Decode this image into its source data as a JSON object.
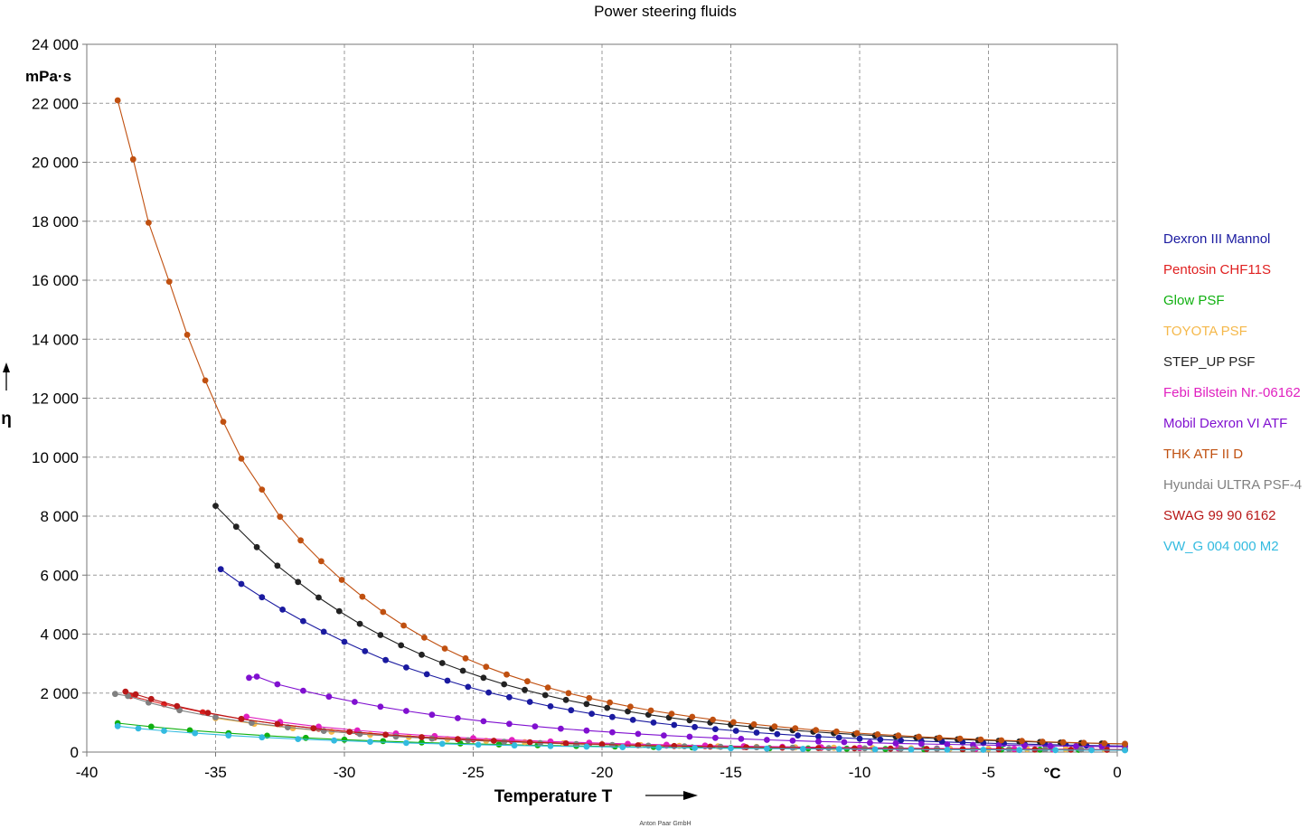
{
  "chart_data": {
    "type": "line",
    "title": "Power steering fluids",
    "xlabel": "Temperature T",
    "x_unit": "°C",
    "ylabel": "η",
    "y_unit": "mPa·s",
    "xlim": [
      -40,
      0
    ],
    "ylim": [
      0,
      24000
    ],
    "x_ticks": [
      "-40",
      "-35",
      "-30",
      "-25",
      "-20",
      "-15",
      "-10",
      "-5",
      "0"
    ],
    "y_ticks": [
      "0",
      "2 000",
      "4 000",
      "6 000",
      "8 000",
      "10 000",
      "12 000",
      "14 000",
      "16 000",
      "18 000",
      "20 000",
      "22 000",
      "24 000"
    ],
    "grid": true,
    "legend_position": "right",
    "footer": "Anton Paar GmbH",
    "series": [
      {
        "name": "Dexron III Mannol",
        "color": "#1a1aa0",
        "x": [
          -34.8,
          -34,
          -33.2,
          -32.4,
          -31.6,
          -30.8,
          -30,
          -29.2,
          -28.4,
          -27.6,
          -26.8,
          -26,
          -25.2,
          -24.4,
          -23.6,
          -22.8,
          -22,
          -21.2,
          -20.4,
          -19.6,
          -18.8,
          -18,
          -17.2,
          -16.4,
          -15.6,
          -14.8,
          -14,
          -13.2,
          -12.4,
          -11.6,
          -10.8,
          -10,
          -9.2,
          -8.4,
          -7.6,
          -6.8,
          -6,
          -5.2,
          -4.4,
          -3.6,
          -2.8,
          -2,
          -1.2,
          -0.4,
          0.3
        ],
        "y": [
          6200,
          5700,
          5250,
          4830,
          4440,
          4080,
          3740,
          3420,
          3120,
          2870,
          2640,
          2420,
          2210,
          2020,
          1860,
          1700,
          1550,
          1420,
          1300,
          1190,
          1090,
          1000,
          920,
          850,
          780,
          720,
          660,
          610,
          565,
          525,
          490,
          455,
          425,
          395,
          370,
          345,
          325,
          305,
          285,
          270,
          255,
          240,
          225,
          215,
          205
        ]
      },
      {
        "name": "Pentosin CHF11S",
        "color": "#e02020",
        "x": [
          -38.3,
          -37,
          -35.5,
          -34,
          -32.5,
          -31,
          -29.5,
          -28,
          -26.5,
          -25,
          -23.5,
          -22,
          -20.5,
          -19,
          -17.5,
          -16,
          -14.5,
          -13,
          -11.5,
          -10,
          -8.5,
          -7,
          -5.5,
          -4,
          -2.5,
          -1,
          0.3
        ],
        "y": [
          1900,
          1620,
          1350,
          1120,
          940,
          790,
          670,
          570,
          490,
          425,
          370,
          322,
          282,
          248,
          220,
          196,
          176,
          159,
          145,
          133,
          122,
          113,
          105,
          98,
          92,
          87,
          83
        ]
      },
      {
        "name": "Glow PSF",
        "color": "#10b010",
        "x": [
          -38.8,
          -37.5,
          -36,
          -34.5,
          -33,
          -31.5,
          -30,
          -28.5,
          -27,
          -25.5,
          -24,
          -22.5,
          -21,
          -19.5,
          -18,
          -16.5,
          -15,
          -13.5,
          -12,
          -10.5,
          -9,
          -7.5,
          -6,
          -4.5,
          -3,
          -1.5,
          0.3
        ],
        "y": [
          980,
          860,
          740,
          640,
          555,
          480,
          420,
          370,
          326,
          290,
          258,
          231,
          208,
          188,
          171,
          156,
          143,
          132,
          122,
          113,
          105,
          98,
          92,
          86,
          81,
          77,
          73
        ]
      },
      {
        "name": "TOYOTA PSF",
        "color": "#f5b84a",
        "x": [
          -35,
          -33.5,
          -32,
          -30.5,
          -29,
          -27.5,
          -26,
          -24.5,
          -23,
          -21.5,
          -20,
          -18.5,
          -17,
          -15.5,
          -14,
          -12.5,
          -11,
          -9.5,
          -8,
          -6.5,
          -5,
          -3.5,
          -2,
          -0.5,
          0.3
        ],
        "y": [
          1150,
          960,
          810,
          690,
          590,
          508,
          440,
          384,
          337,
          297,
          264,
          236,
          212,
          192,
          175,
          160,
          147,
          136,
          126,
          117,
          109,
          102,
          96,
          91,
          89
        ]
      },
      {
        "name": "STEP_UP PSF",
        "color": "#222222",
        "x": [
          -35,
          -34.2,
          -33.4,
          -32.6,
          -31.8,
          -31,
          -30.2,
          -29.4,
          -28.6,
          -27.8,
          -27,
          -26.2,
          -25.4,
          -24.6,
          -23.8,
          -23,
          -22.2,
          -21.4,
          -20.6,
          -19.8,
          -19,
          -18.2,
          -17.4,
          -16.6,
          -15.8,
          -15,
          -14.2,
          -13.4,
          -12.6,
          -11.8,
          -11,
          -10.2,
          -9.4,
          -8.6,
          -7.8,
          -7,
          -6.2,
          -5.4,
          -4.6,
          -3.8,
          -3,
          -2.2,
          -1.4,
          -0.6,
          0.3
        ],
        "y": [
          8350,
          7640,
          6950,
          6320,
          5770,
          5240,
          4780,
          4350,
          3970,
          3620,
          3300,
          3020,
          2760,
          2520,
          2300,
          2110,
          1930,
          1770,
          1630,
          1500,
          1380,
          1270,
          1170,
          1080,
          1000,
          925,
          855,
          795,
          740,
          690,
          640,
          600,
          560,
          525,
          490,
          460,
          432,
          406,
          382,
          360,
          340,
          322,
          305,
          290,
          275
        ]
      },
      {
        "name": "Febi Bilstein Nr.-06162",
        "color": "#e020c0",
        "x": [
          -33.8,
          -32.5,
          -31,
          -29.5,
          -28,
          -26.5,
          -25,
          -23.5,
          -22,
          -20.5,
          -19,
          -17.5,
          -16,
          -14.5,
          -13,
          -11.5,
          -10,
          -8.5,
          -7,
          -5.5,
          -4,
          -2.5,
          -1,
          0.3
        ],
        "y": [
          1200,
          1020,
          860,
          735,
          630,
          543,
          470,
          410,
          360,
          317,
          280,
          249,
          222,
          199,
          180,
          163,
          148,
          135,
          124,
          114,
          106,
          98,
          92,
          87
        ]
      },
      {
        "name": "Mobil Dexron VI  ATF",
        "color": "#8010d0",
        "x": [
          -33.7,
          -33.4,
          -32.6,
          -31.6,
          -30.6,
          -29.6,
          -28.6,
          -27.6,
          -26.6,
          -25.6,
          -24.6,
          -23.6,
          -22.6,
          -21.6,
          -20.6,
          -19.6,
          -18.6,
          -17.6,
          -16.6,
          -15.6,
          -14.6,
          -13.6,
          -12.6,
          -11.6,
          -10.6,
          -9.6,
          -8.6,
          -7.6,
          -6.6,
          -5.6,
          -4.6,
          -3.6,
          -2.6,
          -1.6,
          -0.6,
          0.3
        ],
        "y": [
          2520,
          2560,
          2300,
          2080,
          1880,
          1700,
          1540,
          1395,
          1265,
          1150,
          1045,
          955,
          870,
          795,
          730,
          670,
          615,
          565,
          522,
          482,
          447,
          415,
          386,
          360,
          336,
          315,
          295,
          277,
          261,
          246,
          232,
          220,
          208,
          198,
          188,
          180
        ]
      },
      {
        "name": "THK ATF II D",
        "color": "#c05010",
        "x": [
          -38.8,
          -38.2,
          -37.6,
          -36.8,
          -36.1,
          -35.4,
          -34.7,
          -34,
          -33.2,
          -32.5,
          -31.7,
          -30.9,
          -30.1,
          -29.3,
          -28.5,
          -27.7,
          -26.9,
          -26.1,
          -25.3,
          -24.5,
          -23.7,
          -22.9,
          -22.1,
          -21.3,
          -20.5,
          -19.7,
          -18.9,
          -18.1,
          -17.3,
          -16.5,
          -15.7,
          -14.9,
          -14.1,
          -13.3,
          -12.5,
          -11.7,
          -10.9,
          -10.1,
          -9.3,
          -8.5,
          -7.7,
          -6.9,
          -6.1,
          -5.3,
          -4.5,
          -3.7,
          -2.9,
          -2.1,
          -1.3,
          -0.5,
          0.3
        ],
        "y": [
          22100,
          20100,
          17950,
          15950,
          14150,
          12600,
          11200,
          9950,
          8900,
          7980,
          7180,
          6470,
          5840,
          5270,
          4750,
          4290,
          3880,
          3510,
          3180,
          2890,
          2630,
          2400,
          2190,
          2000,
          1830,
          1680,
          1540,
          1410,
          1300,
          1195,
          1100,
          1015,
          940,
          870,
          805,
          745,
          695,
          645,
          600,
          560,
          522,
          488,
          456,
          427,
          400,
          376,
          353,
          332,
          313,
          295,
          280
        ]
      },
      {
        "name": "Hyundai ULTRA PSF-4",
        "color": "#808080",
        "x": [
          -38.9,
          -38.4,
          -37.6,
          -36.4,
          -35,
          -33.6,
          -32.2,
          -30.8,
          -29.4,
          -28,
          -26.6,
          -25.2,
          -23.8,
          -22.4,
          -21,
          -19.6,
          -18.2,
          -16.8,
          -15.4,
          -14,
          -12.6,
          -11.2,
          -9.8,
          -8.4,
          -7,
          -5.6,
          -4.2,
          -2.8,
          -1.4,
          0.3
        ],
        "y": [
          1970,
          1900,
          1680,
          1420,
          1180,
          990,
          840,
          716,
          613,
          527,
          456,
          397,
          348,
          307,
          272,
          242,
          217,
          195,
          177,
          161,
          147,
          135,
          125,
          116,
          108,
          101,
          95,
          89,
          84,
          79
        ]
      },
      {
        "name": "SWAG 99 90 6162",
        "color": "#b81818",
        "x": [
          -38.5,
          -38.1,
          -37.5,
          -36.5,
          -35.3,
          -34,
          -32.6,
          -31.2,
          -29.8,
          -28.4,
          -27,
          -25.6,
          -24.2,
          -22.8,
          -21.4,
          -20,
          -18.6,
          -17.2,
          -15.8,
          -14.4,
          -13,
          -11.6,
          -10.2,
          -8.8,
          -7.4,
          -6,
          -4.6,
          -3.2,
          -1.8,
          -0.4,
          0.3
        ],
        "y": [
          2050,
          1960,
          1800,
          1560,
          1330,
          1125,
          950,
          806,
          687,
          589,
          507,
          439,
          382,
          334,
          294,
          260,
          231,
          206,
          185,
          167,
          151,
          138,
          126,
          116,
          107,
          99,
          92,
          86,
          81,
          76,
          74
        ]
      },
      {
        "name": "VW_G 004 000 M2",
        "color": "#33bbe0",
        "x": [
          -38.8,
          -38,
          -37,
          -35.8,
          -34.5,
          -33.2,
          -31.8,
          -30.4,
          -29,
          -27.6,
          -26.2,
          -24.8,
          -23.4,
          -22,
          -20.6,
          -19.2,
          -17.8,
          -16.4,
          -15,
          -13.6,
          -12.2,
          -10.8,
          -9.4,
          -8,
          -6.6,
          -5.2,
          -3.8,
          -2.4,
          -1,
          0.3
        ],
        "y": [
          880,
          800,
          720,
          640,
          565,
          500,
          442,
          392,
          349,
          311,
          278,
          249,
          224,
          202,
          183,
          166,
          151,
          138,
          127,
          117,
          108,
          100,
          93,
          87,
          81,
          76,
          72,
          68,
          64,
          61
        ]
      }
    ]
  }
}
